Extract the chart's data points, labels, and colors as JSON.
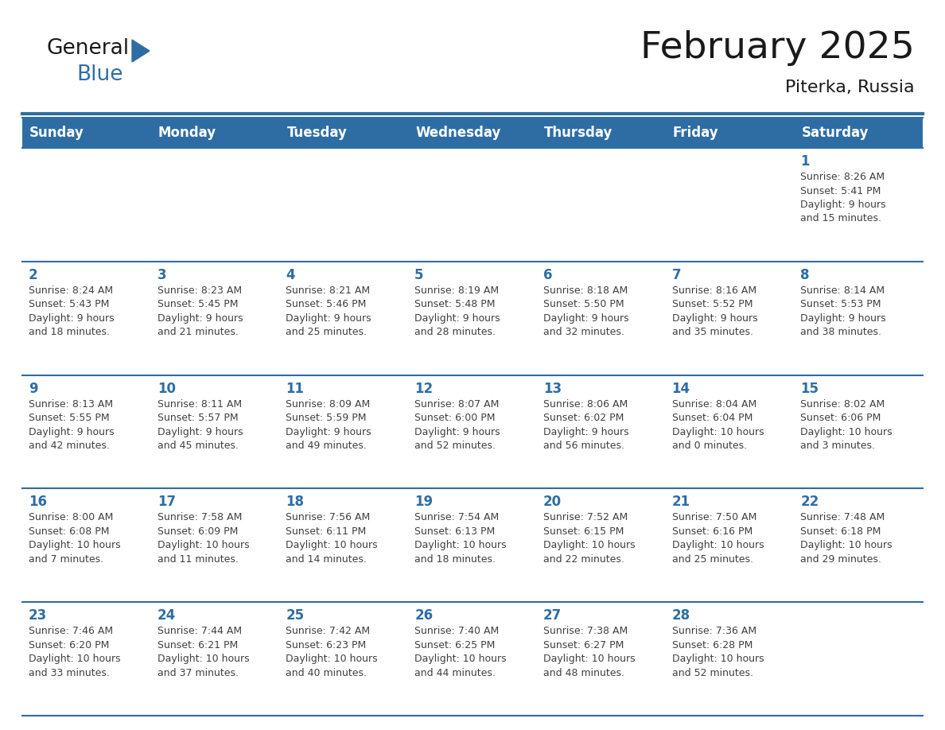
{
  "title": "February 2025",
  "subtitle": "Piterka, Russia",
  "days_of_week": [
    "Sunday",
    "Monday",
    "Tuesday",
    "Wednesday",
    "Thursday",
    "Friday",
    "Saturday"
  ],
  "header_bg": "#2E6DA4",
  "header_text": "#FFFFFF",
  "cell_bg": "#FFFFFF",
  "cell_bg_alt": "#F2F2F2",
  "day_num_color": "#2E6DA4",
  "info_text_color": "#404040",
  "border_color": "#2E6DA4",
  "title_color": "#1a1a1a",
  "subtitle_color": "#1a1a1a",
  "logo_color1": "#1a1a1a",
  "logo_color2": "#2E6DA4",
  "logo_triangle_color": "#2E6DA4",
  "calendar_data": [
    [
      {
        "day": null,
        "info": ""
      },
      {
        "day": null,
        "info": ""
      },
      {
        "day": null,
        "info": ""
      },
      {
        "day": null,
        "info": ""
      },
      {
        "day": null,
        "info": ""
      },
      {
        "day": null,
        "info": ""
      },
      {
        "day": 1,
        "info": "Sunrise: 8:26 AM\nSunset: 5:41 PM\nDaylight: 9 hours\nand 15 minutes."
      }
    ],
    [
      {
        "day": 2,
        "info": "Sunrise: 8:24 AM\nSunset: 5:43 PM\nDaylight: 9 hours\nand 18 minutes."
      },
      {
        "day": 3,
        "info": "Sunrise: 8:23 AM\nSunset: 5:45 PM\nDaylight: 9 hours\nand 21 minutes."
      },
      {
        "day": 4,
        "info": "Sunrise: 8:21 AM\nSunset: 5:46 PM\nDaylight: 9 hours\nand 25 minutes."
      },
      {
        "day": 5,
        "info": "Sunrise: 8:19 AM\nSunset: 5:48 PM\nDaylight: 9 hours\nand 28 minutes."
      },
      {
        "day": 6,
        "info": "Sunrise: 8:18 AM\nSunset: 5:50 PM\nDaylight: 9 hours\nand 32 minutes."
      },
      {
        "day": 7,
        "info": "Sunrise: 8:16 AM\nSunset: 5:52 PM\nDaylight: 9 hours\nand 35 minutes."
      },
      {
        "day": 8,
        "info": "Sunrise: 8:14 AM\nSunset: 5:53 PM\nDaylight: 9 hours\nand 38 minutes."
      }
    ],
    [
      {
        "day": 9,
        "info": "Sunrise: 8:13 AM\nSunset: 5:55 PM\nDaylight: 9 hours\nand 42 minutes."
      },
      {
        "day": 10,
        "info": "Sunrise: 8:11 AM\nSunset: 5:57 PM\nDaylight: 9 hours\nand 45 minutes."
      },
      {
        "day": 11,
        "info": "Sunrise: 8:09 AM\nSunset: 5:59 PM\nDaylight: 9 hours\nand 49 minutes."
      },
      {
        "day": 12,
        "info": "Sunrise: 8:07 AM\nSunset: 6:00 PM\nDaylight: 9 hours\nand 52 minutes."
      },
      {
        "day": 13,
        "info": "Sunrise: 8:06 AM\nSunset: 6:02 PM\nDaylight: 9 hours\nand 56 minutes."
      },
      {
        "day": 14,
        "info": "Sunrise: 8:04 AM\nSunset: 6:04 PM\nDaylight: 10 hours\nand 0 minutes."
      },
      {
        "day": 15,
        "info": "Sunrise: 8:02 AM\nSunset: 6:06 PM\nDaylight: 10 hours\nand 3 minutes."
      }
    ],
    [
      {
        "day": 16,
        "info": "Sunrise: 8:00 AM\nSunset: 6:08 PM\nDaylight: 10 hours\nand 7 minutes."
      },
      {
        "day": 17,
        "info": "Sunrise: 7:58 AM\nSunset: 6:09 PM\nDaylight: 10 hours\nand 11 minutes."
      },
      {
        "day": 18,
        "info": "Sunrise: 7:56 AM\nSunset: 6:11 PM\nDaylight: 10 hours\nand 14 minutes."
      },
      {
        "day": 19,
        "info": "Sunrise: 7:54 AM\nSunset: 6:13 PM\nDaylight: 10 hours\nand 18 minutes."
      },
      {
        "day": 20,
        "info": "Sunrise: 7:52 AM\nSunset: 6:15 PM\nDaylight: 10 hours\nand 22 minutes."
      },
      {
        "day": 21,
        "info": "Sunrise: 7:50 AM\nSunset: 6:16 PM\nDaylight: 10 hours\nand 25 minutes."
      },
      {
        "day": 22,
        "info": "Sunrise: 7:48 AM\nSunset: 6:18 PM\nDaylight: 10 hours\nand 29 minutes."
      }
    ],
    [
      {
        "day": 23,
        "info": "Sunrise: 7:46 AM\nSunset: 6:20 PM\nDaylight: 10 hours\nand 33 minutes."
      },
      {
        "day": 24,
        "info": "Sunrise: 7:44 AM\nSunset: 6:21 PM\nDaylight: 10 hours\nand 37 minutes."
      },
      {
        "day": 25,
        "info": "Sunrise: 7:42 AM\nSunset: 6:23 PM\nDaylight: 10 hours\nand 40 minutes."
      },
      {
        "day": 26,
        "info": "Sunrise: 7:40 AM\nSunset: 6:25 PM\nDaylight: 10 hours\nand 44 minutes."
      },
      {
        "day": 27,
        "info": "Sunrise: 7:38 AM\nSunset: 6:27 PM\nDaylight: 10 hours\nand 48 minutes."
      },
      {
        "day": 28,
        "info": "Sunrise: 7:36 AM\nSunset: 6:28 PM\nDaylight: 10 hours\nand 52 minutes."
      },
      {
        "day": null,
        "info": ""
      }
    ]
  ]
}
